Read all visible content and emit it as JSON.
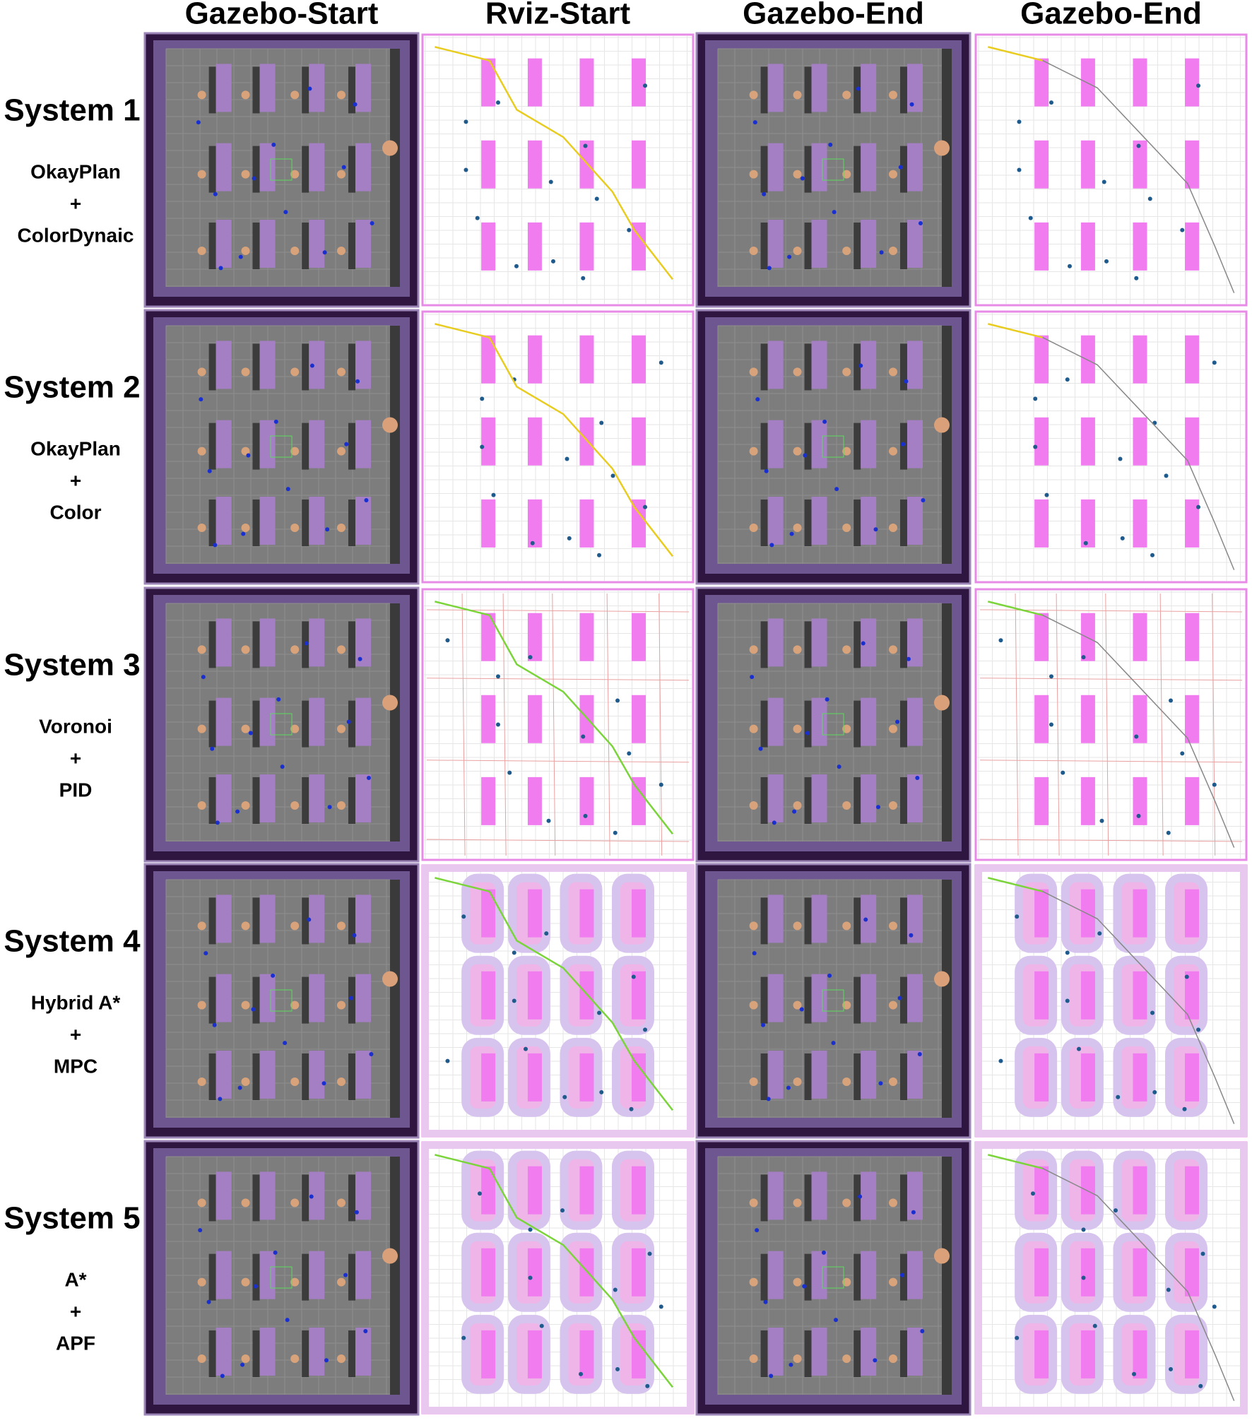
{
  "headers": [
    "Gazebo-Start",
    "Rviz-Start",
    "Gazebo-End",
    "Gazebo-End"
  ],
  "rows": [
    {
      "system": "System 1",
      "method": [
        "OkayPlan",
        "+",
        "ColorDynaic"
      ]
    },
    {
      "system": "System 2",
      "method": [
        "OkayPlan",
        "+",
        "Color"
      ]
    },
    {
      "system": "System 3",
      "method": [
        "Voronoi",
        "+",
        "PID"
      ]
    },
    {
      "system": "System 4",
      "method": [
        "Hybrid A*",
        "+",
        "MPC"
      ]
    },
    {
      "system": "System 5",
      "method": [
        "A*",
        "+",
        "APF"
      ]
    }
  ]
}
